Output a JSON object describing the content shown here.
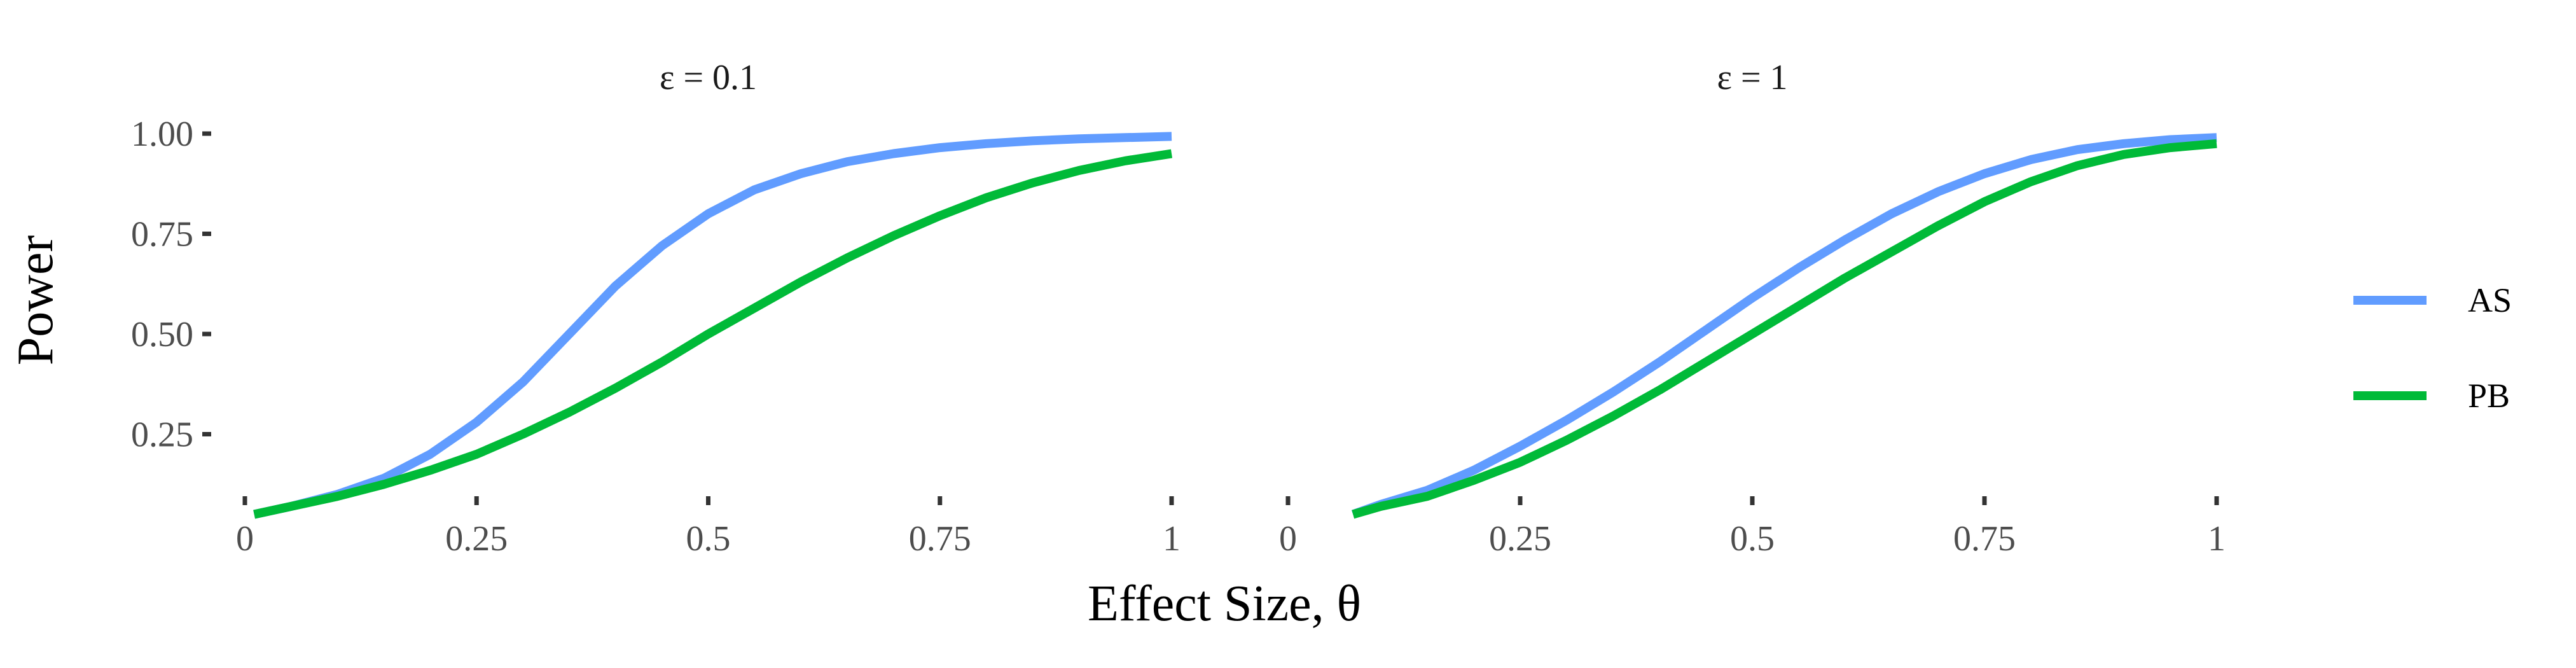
{
  "chart_data": {
    "type": "line",
    "xlabel": "Effect Size, θ",
    "ylabel": "Power",
    "xlim": [
      0,
      1
    ],
    "ylim": [
      0,
      1
    ],
    "x_ticks": [
      0,
      0.25,
      0.5,
      0.75,
      1
    ],
    "x_tick_labels": [
      "0",
      "0.25",
      "0.5",
      "0.75",
      "1"
    ],
    "y_ticks": [
      0.25,
      0.5,
      0.75,
      1.0
    ],
    "y_tick_labels": [
      "0.25",
      "0.50",
      "0.75",
      "1.00"
    ],
    "grid": false,
    "legend_position": "right",
    "colors": {
      "AS": "#619CFF",
      "PB": "#00BA38"
    },
    "panels": [
      {
        "strip_label": "ε = 0.1",
        "series": [
          {
            "name": "AS",
            "x": [
              0.01,
              0.05,
              0.1,
              0.15,
              0.2,
              0.25,
              0.3,
              0.35,
              0.4,
              0.45,
              0.5,
              0.55,
              0.6,
              0.65,
              0.7,
              0.75,
              0.8,
              0.85,
              0.9,
              0.95,
              1.0
            ],
            "y": [
              0.05,
              0.07,
              0.1,
              0.14,
              0.2,
              0.28,
              0.38,
              0.5,
              0.62,
              0.72,
              0.8,
              0.86,
              0.9,
              0.93,
              0.95,
              0.965,
              0.975,
              0.982,
              0.987,
              0.99,
              0.993
            ]
          },
          {
            "name": "PB",
            "x": [
              0.01,
              0.05,
              0.1,
              0.15,
              0.2,
              0.25,
              0.3,
              0.35,
              0.4,
              0.45,
              0.5,
              0.55,
              0.6,
              0.65,
              0.7,
              0.75,
              0.8,
              0.85,
              0.9,
              0.95,
              1.0
            ],
            "y": [
              0.05,
              0.07,
              0.095,
              0.125,
              0.16,
              0.2,
              0.25,
              0.305,
              0.365,
              0.43,
              0.5,
              0.565,
              0.63,
              0.69,
              0.745,
              0.795,
              0.84,
              0.877,
              0.908,
              0.932,
              0.95
            ]
          }
        ]
      },
      {
        "strip_label": "ε = 1",
        "series": [
          {
            "name": "AS",
            "x": [
              0.07,
              0.1,
              0.15,
              0.2,
              0.25,
              0.3,
              0.35,
              0.4,
              0.45,
              0.5,
              0.55,
              0.6,
              0.65,
              0.7,
              0.75,
              0.8,
              0.85,
              0.9,
              0.95,
              1.0
            ],
            "y": [
              0.05,
              0.075,
              0.11,
              0.16,
              0.22,
              0.285,
              0.355,
              0.43,
              0.51,
              0.59,
              0.665,
              0.735,
              0.8,
              0.855,
              0.9,
              0.935,
              0.96,
              0.975,
              0.985,
              0.99
            ]
          },
          {
            "name": "PB",
            "x": [
              0.07,
              0.1,
              0.15,
              0.2,
              0.25,
              0.3,
              0.35,
              0.4,
              0.45,
              0.5,
              0.55,
              0.6,
              0.65,
              0.7,
              0.75,
              0.8,
              0.85,
              0.9,
              0.95,
              1.0
            ],
            "y": [
              0.05,
              0.07,
              0.095,
              0.135,
              0.18,
              0.235,
              0.295,
              0.36,
              0.43,
              0.5,
              0.57,
              0.64,
              0.705,
              0.77,
              0.83,
              0.88,
              0.92,
              0.948,
              0.965,
              0.975
            ]
          }
        ]
      }
    ]
  }
}
